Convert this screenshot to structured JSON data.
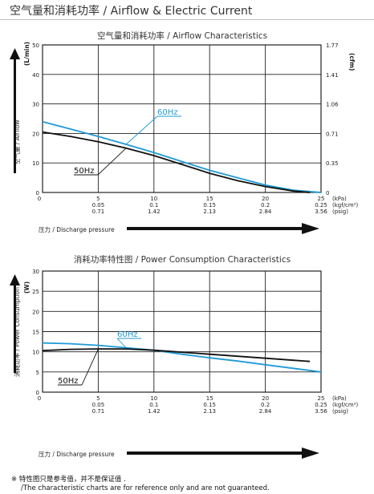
{
  "header": {
    "title": "空气量和消耗功率 / Airflow & Electric Current"
  },
  "colors": {
    "line_60hz": "#1e9ad6",
    "line_50hz": "#111111",
    "grid": "#222222",
    "text": "#222222"
  },
  "chart_data": [
    {
      "type": "line",
      "title": "空气量和消耗功率 / Airflow Characteristics",
      "ylabel": "空气量 / Airflow",
      "ylabel_unit": "(L/min)",
      "y2label_unit": "(cfm)",
      "ylim": [
        0,
        50
      ],
      "yticks": [
        "0",
        "10",
        "20",
        "30",
        "40",
        "50"
      ],
      "y2ticks": [
        "0",
        "0.35",
        "0.71",
        "1.06",
        "1.41",
        "1.77"
      ],
      "xlim": [
        0,
        25
      ],
      "xticks": [
        {
          "kpa": "0",
          "kgf": "",
          "psig": ""
        },
        {
          "kpa": "5",
          "kgf": "0.05",
          "psig": "0.71"
        },
        {
          "kpa": "10",
          "kgf": "0.1",
          "psig": "1.42"
        },
        {
          "kpa": "15",
          "kgf": "0.15",
          "psig": "2.13"
        },
        {
          "kpa": "20",
          "kgf": "0.2",
          "psig": "2.84"
        },
        {
          "kpa": "25",
          "kgf": "0.25",
          "psig": "3.56"
        }
      ],
      "xunits": [
        "(kPa)",
        "(kgf/cm²)",
        "(psig)"
      ],
      "xlabel": "压力 / Discharge pressure",
      "series": [
        {
          "name": "60Hz",
          "color": "#1e9ad6",
          "x": [
            0,
            2.5,
            5,
            7.5,
            10,
            12.5,
            15,
            17.5,
            20,
            22.5,
            25
          ],
          "values": [
            24,
            21.5,
            19,
            16.3,
            13.5,
            10.5,
            7.5,
            5,
            2.5,
            0.8,
            0
          ]
        },
        {
          "name": "50Hz",
          "color": "#111111",
          "x": [
            0,
            2.5,
            5,
            7.5,
            10,
            12.5,
            15,
            17.5,
            20,
            22.5,
            24
          ],
          "values": [
            20.5,
            19,
            17.2,
            15,
            12.5,
            9.5,
            6.5,
            4,
            2,
            0.5,
            0
          ]
        }
      ],
      "annotations": [
        {
          "text": "60Hz",
          "series": "60Hz"
        },
        {
          "text": "50Hz",
          "series": "50Hz"
        }
      ]
    },
    {
      "type": "line",
      "title": "消耗功率特性图 / Power Consumption Characteristics",
      "ylabel": "消耗功率 / Power Consumption",
      "ylabel_unit": "(W)",
      "ylim": [
        0,
        30
      ],
      "yticks": [
        "0",
        "5",
        "10",
        "15",
        "20",
        "25",
        "30"
      ],
      "xlim": [
        0,
        25
      ],
      "xticks": [
        {
          "kpa": "0",
          "kgf": "",
          "psig": ""
        },
        {
          "kpa": "5",
          "kgf": "0.05",
          "psig": "0.71"
        },
        {
          "kpa": "10",
          "kgf": "0.1",
          "psig": "1.42"
        },
        {
          "kpa": "15",
          "kgf": "0.15",
          "psig": "2.13"
        },
        {
          "kpa": "20",
          "kgf": "0.2",
          "psig": "2.84"
        },
        {
          "kpa": "25",
          "kgf": "0.25",
          "psig": "3.56"
        }
      ],
      "xunits": [
        "(kPa)",
        "(kgf/cm²)",
        "(psig)"
      ],
      "xlabel": "压力 / Discharge pressure",
      "series": [
        {
          "name": "60Hz",
          "color": "#1e9ad6",
          "x": [
            0,
            2.5,
            5,
            7.5,
            10,
            12.5,
            15,
            17.5,
            20,
            22.5,
            25
          ],
          "values": [
            12.2,
            12,
            11.6,
            11,
            10.4,
            9.4,
            8.5,
            7.7,
            6.8,
            5.9,
            5
          ]
        },
        {
          "name": "50Hz",
          "color": "#111111",
          "x": [
            0,
            2.5,
            5,
            7.5,
            10,
            12.5,
            15,
            17.5,
            20,
            22.5,
            24
          ],
          "values": [
            10.3,
            10.6,
            10.7,
            10.7,
            10.4,
            9.9,
            9.4,
            8.9,
            8.4,
            7.9,
            7.6
          ]
        }
      ],
      "annotations": [
        {
          "text": "60Hz",
          "series": "60Hz"
        },
        {
          "text": "50Hz",
          "series": "50Hz"
        }
      ]
    }
  ],
  "notes": {
    "line1": "※ 特性图只是参考值，并不是保证值 .",
    "line2": "/The characteristic charts are for reference only and are not guaranteed."
  }
}
